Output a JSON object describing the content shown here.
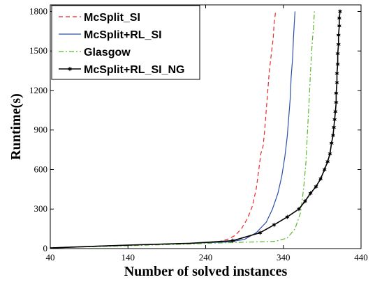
{
  "chart_data": {
    "type": "line",
    "title": "",
    "xlabel": "Number of solved instances",
    "ylabel": "Runtime(s)",
    "xlim": [
      40,
      440
    ],
    "ylim": [
      0,
      1850
    ],
    "xticks": [
      40,
      140,
      240,
      340,
      440
    ],
    "yticks": [
      0,
      300,
      600,
      900,
      1200,
      1500,
      1800
    ],
    "grid": false,
    "legend_position": "top-left",
    "series": [
      {
        "name": "McSplit_SI",
        "color": "#e8282b",
        "dash": "dashed",
        "marker": "none",
        "x": [
          40,
          100,
          160,
          220,
          255,
          268,
          278,
          286,
          294,
          300,
          305,
          308,
          311,
          314,
          316,
          318,
          320,
          322,
          324,
          325,
          327,
          328,
          330
        ],
        "y": [
          5,
          18,
          30,
          40,
          50,
          70,
          100,
          150,
          230,
          320,
          450,
          580,
          720,
          780,
          900,
          1050,
          1200,
          1350,
          1450,
          1500,
          1600,
          1700,
          1800
        ]
      },
      {
        "name": "McSplit+RL_SI",
        "color": "#2b4fa8",
        "dash": "solid",
        "marker": "none",
        "x": [
          40,
          100,
          160,
          220,
          270,
          290,
          305,
          318,
          326,
          333,
          338,
          342,
          345,
          347,
          349,
          350,
          352,
          353,
          354,
          355
        ],
        "y": [
          5,
          18,
          30,
          40,
          50,
          70,
          120,
          200,
          300,
          420,
          550,
          700,
          850,
          1000,
          1150,
          1300,
          1450,
          1600,
          1700,
          1800
        ]
      },
      {
        "name": "Glasgow",
        "color": "#5cb82e",
        "dash": "dashdot",
        "marker": "none",
        "x": [
          40,
          100,
          160,
          220,
          270,
          330,
          345,
          355,
          362,
          366,
          369,
          371,
          373,
          375,
          377,
          379,
          380
        ],
        "y": [
          5,
          15,
          25,
          35,
          45,
          55,
          80,
          150,
          270,
          450,
          650,
          880,
          1100,
          1350,
          1550,
          1700,
          1800
        ]
      },
      {
        "name": "McSplit+RL_SI_NG",
        "color": "#000000",
        "dash": "solid",
        "marker": "star",
        "x": [
          40,
          100,
          160,
          220,
          275,
          310,
          328,
          345,
          360,
          368,
          375,
          382,
          388,
          393,
          397,
          400,
          402,
          404,
          405,
          406,
          407,
          408,
          408,
          409,
          409,
          410,
          410,
          411,
          411,
          412,
          412,
          413
        ],
        "y": [
          5,
          18,
          30,
          40,
          60,
          120,
          180,
          240,
          300,
          360,
          420,
          470,
          530,
          600,
          660,
          720,
          800,
          860,
          920,
          980,
          1040,
          1110,
          1180,
          1260,
          1330,
          1400,
          1480,
          1550,
          1620,
          1690,
          1750,
          1800
        ]
      }
    ]
  }
}
